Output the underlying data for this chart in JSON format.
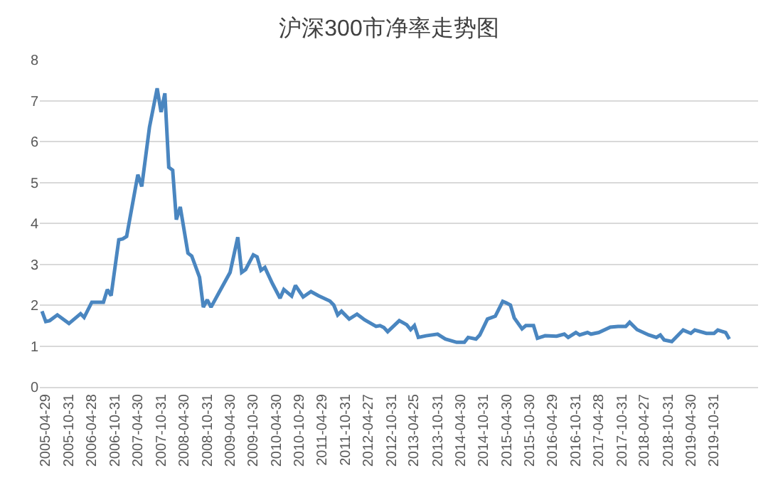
{
  "chart_data": {
    "type": "line",
    "title": "沪深300市净率走势图",
    "x": [
      "2005-04",
      "2005-05",
      "2005-06",
      "2005-08",
      "2005-11",
      "2006-02",
      "2006-03",
      "2006-05",
      "2006-08",
      "2006-09",
      "2006-10",
      "2006-12",
      "2007-01",
      "2007-02",
      "2007-05",
      "2007-06",
      "2007-08",
      "2007-10",
      "2007-11",
      "2007-12",
      "2008-01",
      "2008-02",
      "2008-03",
      "2008-04",
      "2008-06",
      "2008-07",
      "2008-09",
      "2008-10",
      "2008-11",
      "2008-12",
      "2009-02",
      "2009-05",
      "2009-07",
      "2009-08",
      "2009-09",
      "2009-11",
      "2009-12",
      "2010-01",
      "2010-02",
      "2010-04",
      "2010-06",
      "2010-07",
      "2010-09",
      "2010-10",
      "2010-12",
      "2011-02",
      "2011-04",
      "2011-07",
      "2011-08",
      "2011-09",
      "2011-10",
      "2011-12",
      "2012-02",
      "2012-04",
      "2012-07",
      "2012-08",
      "2012-09",
      "2012-10",
      "2013-01",
      "2013-03",
      "2013-04",
      "2013-05",
      "2013-06",
      "2013-08",
      "2013-11",
      "2014-01",
      "2014-04",
      "2014-06",
      "2014-07",
      "2014-09",
      "2014-10",
      "2014-12",
      "2015-02",
      "2015-04",
      "2015-05",
      "2015-06",
      "2015-07",
      "2015-09",
      "2015-10",
      "2015-12",
      "2016-01",
      "2016-03",
      "2016-06",
      "2016-08",
      "2016-09",
      "2016-11",
      "2016-12",
      "2017-02",
      "2017-03",
      "2017-05",
      "2017-08",
      "2017-10",
      "2017-12",
      "2018-01",
      "2018-03",
      "2018-06",
      "2018-08",
      "2018-09",
      "2018-10",
      "2018-12",
      "2019-03",
      "2019-05",
      "2019-06",
      "2019-09",
      "2019-11",
      "2019-12",
      "2020-02",
      "2020-03"
    ],
    "series": [
      {
        "color": "#4a86c0",
        "values": [
          1.85,
          1.6,
          1.62,
          1.76,
          1.55,
          1.79,
          1.7,
          2.07,
          2.07,
          2.38,
          2.23,
          3.6,
          3.62,
          3.68,
          5.19,
          4.9,
          6.35,
          7.3,
          6.72,
          7.18,
          5.37,
          5.3,
          4.09,
          4.4,
          3.27,
          3.2,
          2.68,
          1.95,
          2.13,
          1.95,
          2.3,
          2.8,
          3.66,
          2.8,
          2.87,
          3.23,
          3.18,
          2.85,
          2.92,
          2.53,
          2.17,
          2.38,
          2.22,
          2.48,
          2.2,
          2.33,
          2.23,
          2.1,
          2.0,
          1.76,
          1.85,
          1.66,
          1.78,
          1.64,
          1.48,
          1.5,
          1.45,
          1.35,
          1.62,
          1.52,
          1.4,
          1.5,
          1.21,
          1.25,
          1.29,
          1.17,
          1.09,
          1.09,
          1.21,
          1.17,
          1.27,
          1.66,
          1.73,
          2.09,
          2.05,
          2.0,
          1.69,
          1.42,
          1.5,
          1.5,
          1.19,
          1.25,
          1.24,
          1.29,
          1.21,
          1.33,
          1.27,
          1.33,
          1.29,
          1.33,
          1.46,
          1.48,
          1.48,
          1.58,
          1.4,
          1.27,
          1.21,
          1.27,
          1.15,
          1.11,
          1.39,
          1.31,
          1.39,
          1.31,
          1.31,
          1.39,
          1.33,
          1.17
        ]
      }
    ],
    "xlim": [
      "2005-03-15",
      "2020-10-15"
    ],
    "xticks": [
      "2005-04-29",
      "2005-10-31",
      "2006-04-28",
      "2006-10-31",
      "2007-04-30",
      "2007-10-31",
      "2008-04-30",
      "2008-10-31",
      "2009-04-30",
      "2009-10-30",
      "2010-04-30",
      "2010-10-29",
      "2011-04-29",
      "2011-10-31",
      "2012-04-27",
      "2012-10-31",
      "2013-04-25",
      "2013-10-31",
      "2014-04-30",
      "2014-10-31",
      "2015-04-30",
      "2015-10-30",
      "2016-04-29",
      "2016-10-31",
      "2017-04-28",
      "2017-10-31",
      "2018-04-27",
      "2018-10-31",
      "2019-04-30",
      "2019-10-31"
    ],
    "ylim": [
      0,
      8
    ],
    "yticks": [
      0,
      1,
      2,
      3,
      4,
      5,
      6,
      7,
      8
    ],
    "grid": "y",
    "marker": "none",
    "line_style": "solid"
  }
}
